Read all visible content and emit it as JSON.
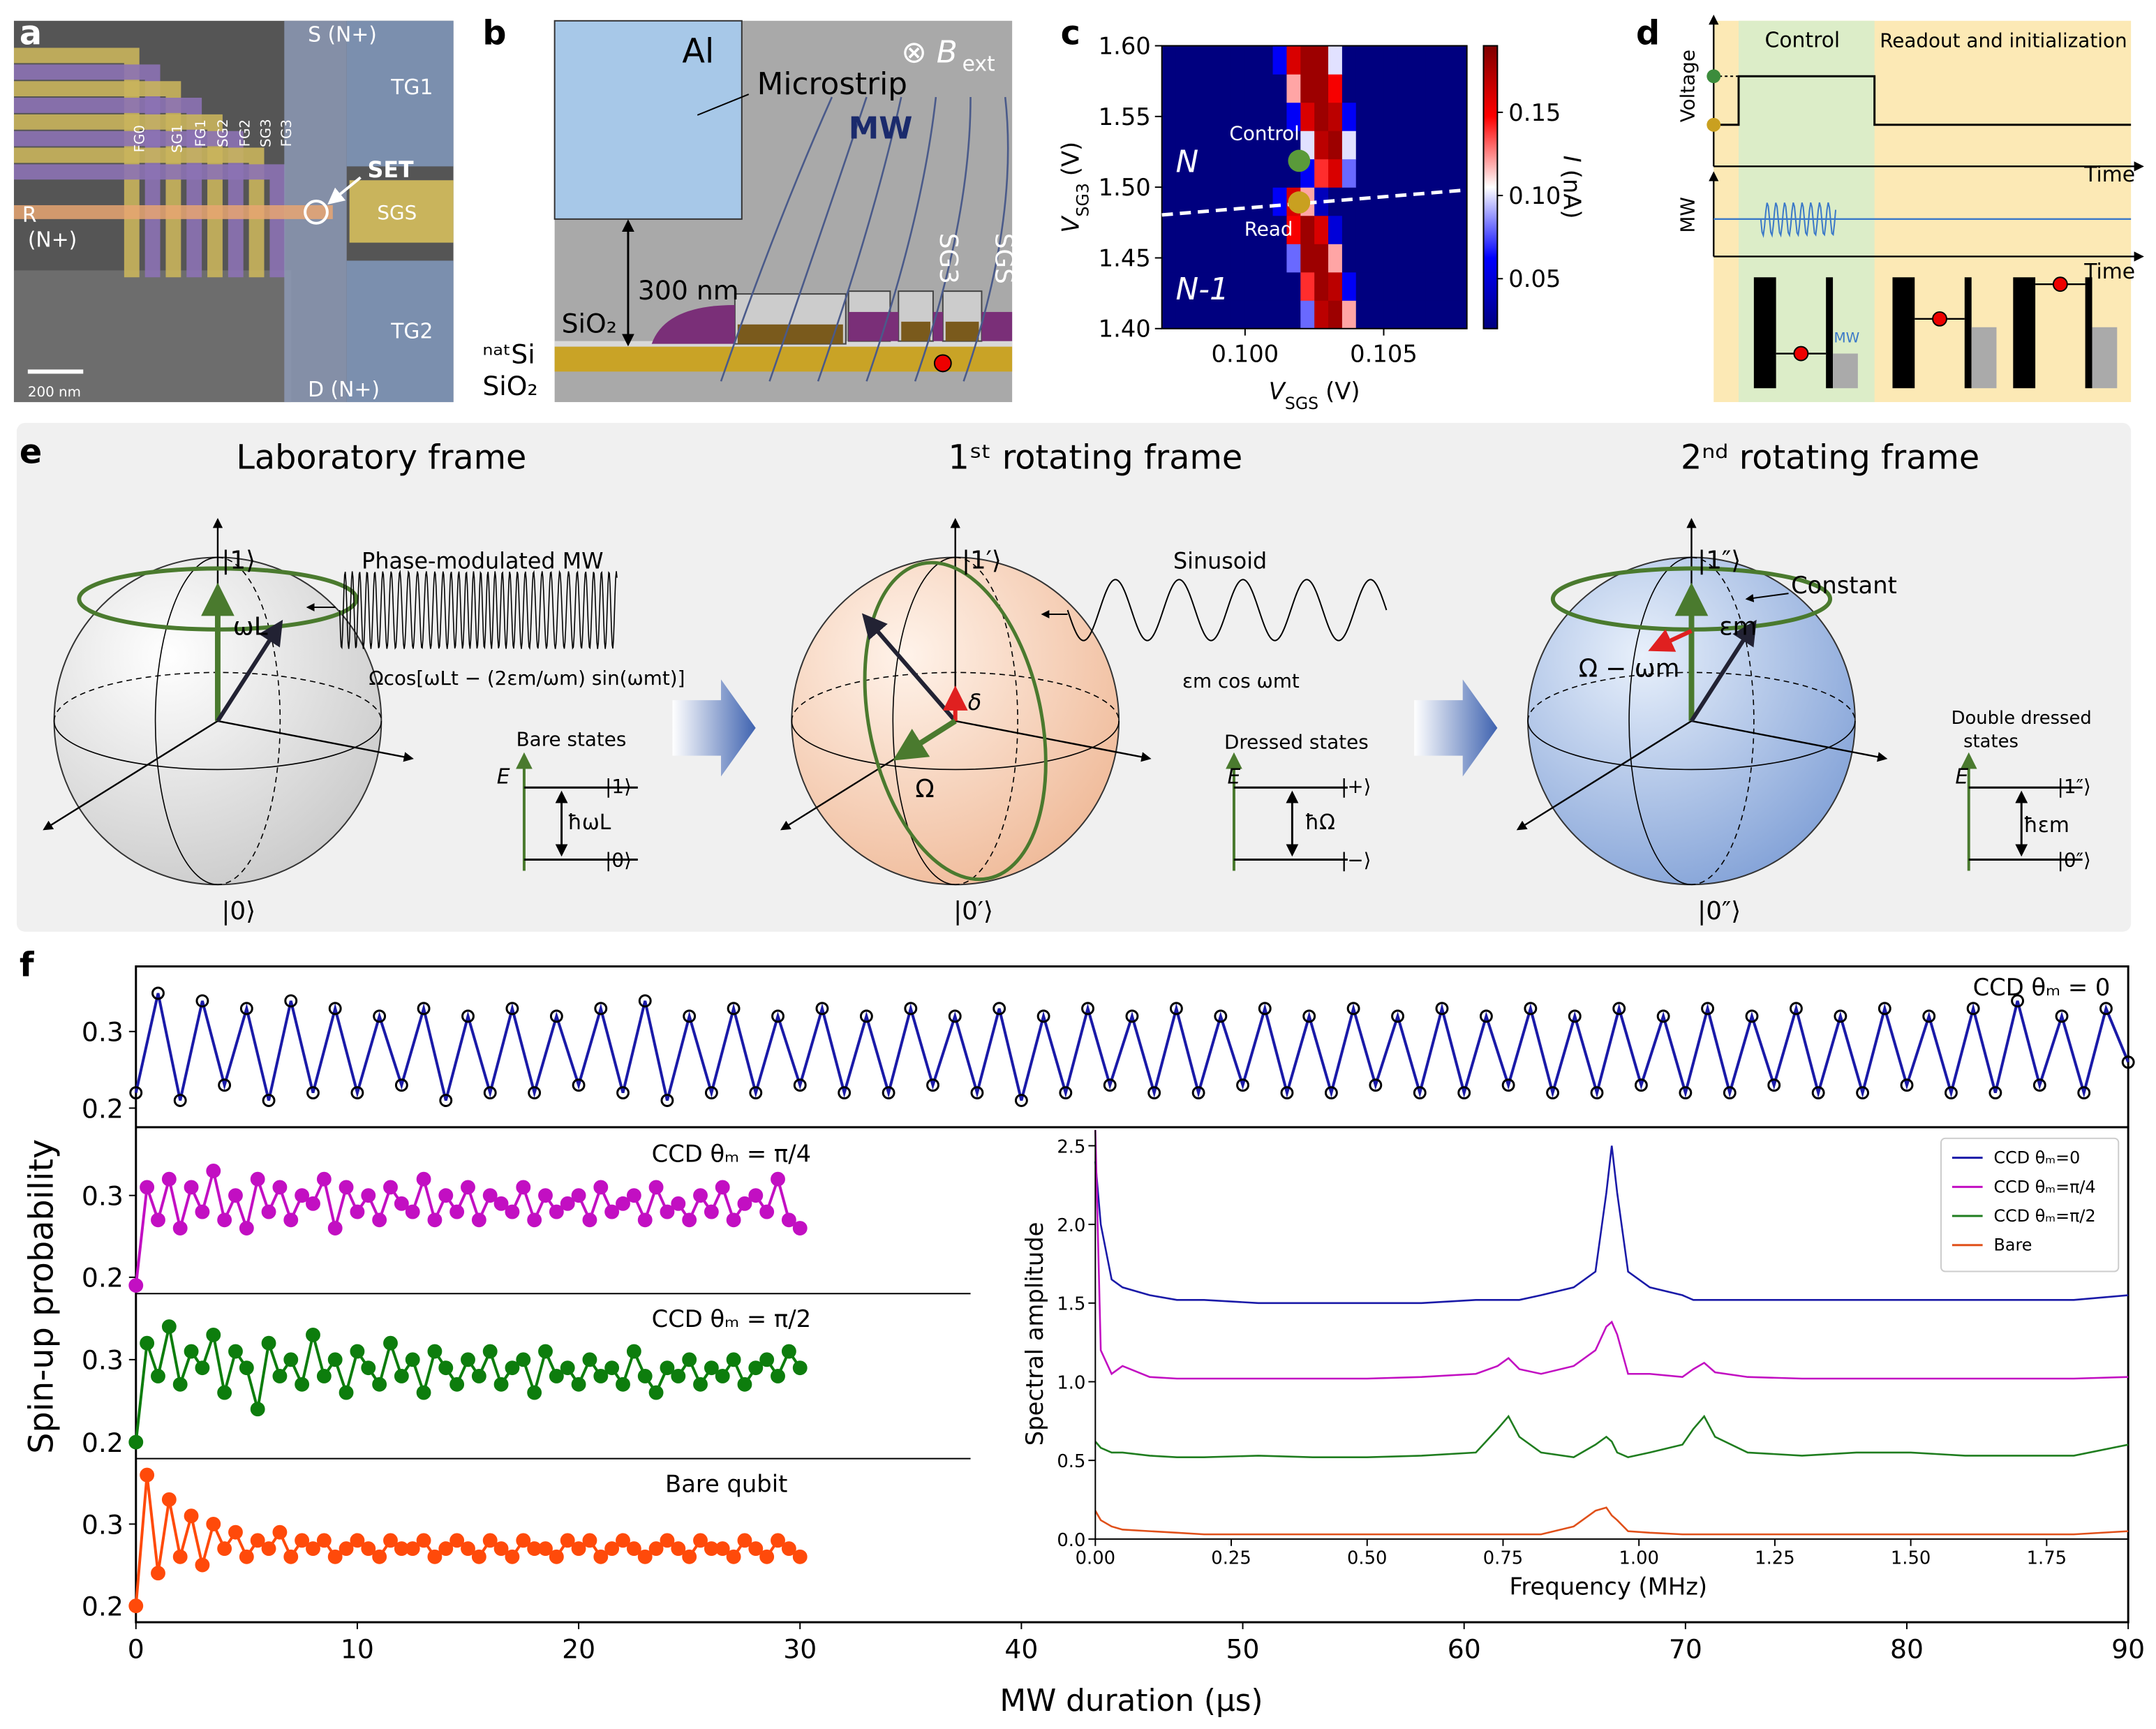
{
  "panel_labels": [
    "a",
    "b",
    "c",
    "d",
    "e",
    "f"
  ],
  "a": {
    "texts": [
      "S (N+)",
      "TG1",
      "FG0",
      "SG1",
      "FG1",
      "SG2",
      "FG2",
      "SG3",
      "FG3",
      "SET",
      "R",
      "(N+)",
      "SGS",
      "TG2",
      "D (N+)",
      "200 nm"
    ]
  },
  "b": {
    "texts": [
      "Al",
      "Microstrip",
      "MW",
      "300 nm",
      "SiO₂",
      "SG3",
      "SGS",
      "ⁿᵃᵗSi",
      "SiO₂",
      "⊗ B",
      "ext"
    ]
  },
  "d": {
    "texts": [
      "Voltage",
      "Control",
      "Readout and initialization",
      "Time",
      "MW",
      "Time",
      "MW"
    ]
  },
  "e": {
    "texts": [
      "Laboratory frame",
      "1ˢᵗ rotating frame",
      "2ⁿᵈ  rotating frame",
      "|1⟩",
      "|0⟩",
      "ωL",
      "Phase-modulated MW",
      "Ωcos[ωLt − (2εm/ωm) sin(ωmt)]",
      "Bare states",
      "E",
      "|1⟩",
      "ħωL",
      "|0⟩",
      "|1′⟩",
      "|0′⟩",
      "Sinusoid",
      "εm cos ωmt",
      "δ",
      "Ω",
      "Dressed states",
      "E",
      "|+⟩",
      "ħΩ",
      "|−⟩",
      "|1″⟩",
      "|0″⟩",
      "Constant",
      "εm",
      "Ω − ωm",
      "Double dressed",
      "states",
      "E",
      "|1″⟩",
      "ħεm",
      "|0″⟩"
    ]
  },
  "chart_data": [
    {
      "type": "heatmap",
      "xlabel": [
        "V",
        "SGS",
        "(V)"
      ],
      "ylabel": [
        "V",
        "SG3",
        "(V)"
      ],
      "colorbar_label": [
        "I",
        "(nA)"
      ],
      "colormap": "seismic",
      "x": [
        0.09725,
        0.09775,
        0.09825,
        0.09875,
        0.09925,
        0.09975,
        0.10025,
        0.10075,
        0.10125,
        0.10175,
        0.10225,
        0.10275,
        0.10325,
        0.10375,
        0.10425,
        0.10475,
        0.10525,
        0.10575,
        0.10625,
        0.10675,
        0.10725,
        0.10775
      ],
      "y": [
        1.41,
        1.43,
        1.45,
        1.47,
        1.49,
        1.51,
        1.53,
        1.55,
        1.57,
        1.59
      ],
      "values": [
        [
          0.02,
          0.02,
          0.02,
          0.02,
          0.02,
          0.02,
          0.02,
          0.02,
          0.02,
          0.02,
          0.08,
          0.17,
          0.18,
          0.12,
          0.02,
          0.02,
          0.02,
          0.02,
          0.02,
          0.02,
          0.02,
          0.02
        ],
        [
          0.02,
          0.02,
          0.02,
          0.02,
          0.02,
          0.02,
          0.02,
          0.02,
          0.02,
          0.02,
          0.14,
          0.18,
          0.17,
          0.06,
          0.02,
          0.02,
          0.02,
          0.02,
          0.02,
          0.02,
          0.02,
          0.02
        ],
        [
          0.02,
          0.02,
          0.02,
          0.02,
          0.02,
          0.02,
          0.02,
          0.02,
          0.02,
          0.08,
          0.18,
          0.18,
          0.12,
          0.02,
          0.02,
          0.02,
          0.02,
          0.02,
          0.02,
          0.02,
          0.02,
          0.02
        ],
        [
          0.02,
          0.02,
          0.02,
          0.02,
          0.02,
          0.02,
          0.02,
          0.02,
          0.02,
          0.15,
          0.18,
          0.16,
          0.05,
          0.02,
          0.02,
          0.02,
          0.02,
          0.02,
          0.02,
          0.02,
          0.02,
          0.02
        ],
        [
          0.02,
          0.02,
          0.02,
          0.02,
          0.02,
          0.02,
          0.02,
          0.02,
          0.06,
          0.16,
          0.12,
          0.04,
          0.02,
          0.02,
          0.02,
          0.02,
          0.02,
          0.02,
          0.02,
          0.02,
          0.02,
          0.02
        ],
        [
          0.02,
          0.02,
          0.02,
          0.02,
          0.02,
          0.02,
          0.02,
          0.02,
          0.02,
          0.02,
          0.06,
          0.14,
          0.16,
          0.08,
          0.02,
          0.02,
          0.02,
          0.02,
          0.02,
          0.02,
          0.02,
          0.02
        ],
        [
          0.02,
          0.02,
          0.02,
          0.02,
          0.02,
          0.02,
          0.02,
          0.02,
          0.02,
          0.02,
          0.1,
          0.17,
          0.18,
          0.1,
          0.02,
          0.02,
          0.02,
          0.02,
          0.02,
          0.02,
          0.02,
          0.02
        ],
        [
          0.02,
          0.02,
          0.02,
          0.02,
          0.02,
          0.02,
          0.02,
          0.02,
          0.02,
          0.06,
          0.16,
          0.18,
          0.17,
          0.06,
          0.02,
          0.02,
          0.02,
          0.02,
          0.02,
          0.02,
          0.02,
          0.02
        ],
        [
          0.02,
          0.02,
          0.02,
          0.02,
          0.02,
          0.02,
          0.02,
          0.02,
          0.02,
          0.12,
          0.18,
          0.18,
          0.15,
          0.02,
          0.02,
          0.02,
          0.02,
          0.02,
          0.02,
          0.02,
          0.02,
          0.02
        ],
        [
          0.02,
          0.02,
          0.02,
          0.02,
          0.02,
          0.02,
          0.02,
          0.02,
          0.06,
          0.16,
          0.18,
          0.18,
          0.1,
          0.02,
          0.02,
          0.02,
          0.02,
          0.02,
          0.02,
          0.02,
          0.02,
          0.02
        ]
      ],
      "xlim": [
        0.097,
        0.108
      ],
      "xticks": [
        {
          "value": 0.1,
          "label": "0.100"
        },
        {
          "value": 0.105,
          "label": "0.105"
        }
      ],
      "ylim": [
        1.4,
        1.6
      ],
      "yticks": [
        {
          "value": 1.4,
          "label": "1.40"
        },
        1.45,
        {
          "value": 1.5,
          "label": "1.50"
        },
        1.55,
        {
          "value": 1.6,
          "label": "1.60"
        }
      ],
      "clim": [
        0.02,
        0.19
      ],
      "cticks": [
        0.05,
        {
          "value": 0.1,
          "label": "0.10"
        },
        0.15
      ],
      "annotations": [
        "Control",
        "Read",
        "N",
        "N-1"
      ]
    },
    {
      "type": "line",
      "title": "CCD θₘ = 0",
      "color": "#1a1aa8",
      "marker": true,
      "marker_color": "#000000",
      "marker_fill": false,
      "x": [
        0,
        1,
        2,
        3,
        4,
        5,
        6,
        7,
        8,
        9,
        10,
        11,
        12,
        13,
        14,
        15,
        16,
        17,
        18,
        19,
        20,
        21,
        22,
        23,
        24,
        25,
        26,
        27,
        28,
        29,
        30,
        31,
        32,
        33,
        34,
        35,
        36,
        37,
        38,
        39,
        40,
        41,
        42,
        43,
        44,
        45,
        46,
        47,
        48,
        49,
        50,
        51,
        52,
        53,
        54,
        55,
        56,
        57,
        58,
        59,
        60,
        61,
        62,
        63,
        64,
        65,
        66,
        67,
        68,
        69,
        70,
        71,
        72,
        73,
        74,
        75,
        76,
        77,
        78,
        79,
        80,
        81,
        82,
        83,
        84,
        85,
        86,
        87,
        88,
        89,
        90
      ],
      "values": [
        0.22,
        0.35,
        0.21,
        0.34,
        0.23,
        0.33,
        0.21,
        0.34,
        0.22,
        0.33,
        0.22,
        0.32,
        0.23,
        0.33,
        0.21,
        0.32,
        0.22,
        0.33,
        0.22,
        0.32,
        0.23,
        0.33,
        0.22,
        0.34,
        0.21,
        0.32,
        0.22,
        0.33,
        0.22,
        0.32,
        0.23,
        0.33,
        0.22,
        0.32,
        0.22,
        0.33,
        0.23,
        0.32,
        0.22,
        0.33,
        0.21,
        0.32,
        0.22,
        0.33,
        0.23,
        0.32,
        0.22,
        0.33,
        0.22,
        0.32,
        0.23,
        0.33,
        0.22,
        0.32,
        0.22,
        0.33,
        0.23,
        0.32,
        0.22,
        0.33,
        0.22,
        0.32,
        0.23,
        0.33,
        0.22,
        0.32,
        0.22,
        0.33,
        0.23,
        0.32,
        0.22,
        0.33,
        0.22,
        0.32,
        0.23,
        0.33,
        0.22,
        0.32,
        0.22,
        0.33,
        0.23,
        0.32,
        0.22,
        0.33,
        0.22,
        0.34,
        0.23,
        0.32,
        0.22,
        0.33,
        0.26
      ],
      "xlim": [
        0,
        90
      ],
      "ylim": [
        0.175,
        0.385
      ],
      "yticks": [
        0.2,
        0.3
      ]
    },
    {
      "type": "line",
      "title": "CCD θₘ = π/4",
      "color": "#c20fc2",
      "marker": true,
      "marker_color": "#c20fc2",
      "marker_fill": true,
      "x": [
        0,
        0.5,
        1,
        1.5,
        2,
        2.5,
        3,
        3.5,
        4,
        4.5,
        5,
        5.5,
        6,
        6.5,
        7,
        7.5,
        8,
        8.5,
        9,
        9.5,
        10,
        10.5,
        11,
        11.5,
        12,
        12.5,
        13,
        13.5,
        14,
        14.5,
        15,
        15.5,
        16,
        16.5,
        17,
        17.5,
        18,
        18.5,
        19,
        19.5,
        20,
        20.5,
        21,
        21.5,
        22,
        22.5,
        23,
        23.5,
        24,
        24.5,
        25,
        25.5,
        26,
        26.5,
        27,
        27.5,
        28,
        28.5,
        29,
        29.5,
        30
      ],
      "values": [
        0.19,
        0.31,
        0.27,
        0.32,
        0.26,
        0.31,
        0.28,
        0.33,
        0.27,
        0.3,
        0.26,
        0.32,
        0.28,
        0.31,
        0.27,
        0.3,
        0.29,
        0.32,
        0.26,
        0.31,
        0.28,
        0.3,
        0.27,
        0.31,
        0.29,
        0.28,
        0.32,
        0.27,
        0.3,
        0.28,
        0.31,
        0.27,
        0.3,
        0.29,
        0.28,
        0.31,
        0.27,
        0.3,
        0.28,
        0.29,
        0.3,
        0.27,
        0.31,
        0.28,
        0.29,
        0.3,
        0.27,
        0.31,
        0.28,
        0.29,
        0.27,
        0.3,
        0.28,
        0.31,
        0.27,
        0.29,
        0.3,
        0.28,
        0.32,
        0.27,
        0.26
      ],
      "xlim": [
        0,
        90
      ],
      "ylim": [
        0.18,
        0.38
      ],
      "yticks": [
        0.2,
        0.3
      ]
    },
    {
      "type": "line",
      "title": "CCD θₘ = π/2",
      "color": "#0d7d0d",
      "marker": true,
      "marker_color": "#0d7d0d",
      "marker_fill": true,
      "x": [
        0,
        0.5,
        1,
        1.5,
        2,
        2.5,
        3,
        3.5,
        4,
        4.5,
        5,
        5.5,
        6,
        6.5,
        7,
        7.5,
        8,
        8.5,
        9,
        9.5,
        10,
        10.5,
        11,
        11.5,
        12,
        12.5,
        13,
        13.5,
        14,
        14.5,
        15,
        15.5,
        16,
        16.5,
        17,
        17.5,
        18,
        18.5,
        19,
        19.5,
        20,
        20.5,
        21,
        21.5,
        22,
        22.5,
        23,
        23.5,
        24,
        24.5,
        25,
        25.5,
        26,
        26.5,
        27,
        27.5,
        28,
        28.5,
        29,
        29.5,
        30
      ],
      "values": [
        0.2,
        0.32,
        0.28,
        0.34,
        0.27,
        0.31,
        0.29,
        0.33,
        0.26,
        0.31,
        0.29,
        0.24,
        0.32,
        0.28,
        0.3,
        0.27,
        0.33,
        0.28,
        0.3,
        0.26,
        0.31,
        0.29,
        0.27,
        0.32,
        0.28,
        0.3,
        0.26,
        0.31,
        0.29,
        0.27,
        0.3,
        0.28,
        0.31,
        0.27,
        0.29,
        0.3,
        0.26,
        0.31,
        0.28,
        0.29,
        0.27,
        0.3,
        0.28,
        0.29,
        0.27,
        0.31,
        0.28,
        0.26,
        0.29,
        0.28,
        0.3,
        0.27,
        0.29,
        0.28,
        0.3,
        0.27,
        0.29,
        0.3,
        0.28,
        0.31,
        0.29
      ],
      "xlim": [
        0,
        90
      ],
      "ylim": [
        0.18,
        0.38
      ],
      "yticks": [
        0.2,
        0.3
      ]
    },
    {
      "type": "line",
      "title": "Bare qubit",
      "color": "#ff4a0a",
      "marker": true,
      "marker_color": "#ff4a0a",
      "marker_fill": true,
      "xlabel": "MW duration (μs)",
      "ylabel": "Spin-up probability",
      "x": [
        0,
        0.5,
        1,
        1.5,
        2,
        2.5,
        3,
        3.5,
        4,
        4.5,
        5,
        5.5,
        6,
        6.5,
        7,
        7.5,
        8,
        8.5,
        9,
        9.5,
        10,
        10.5,
        11,
        11.5,
        12,
        12.5,
        13,
        13.5,
        14,
        14.5,
        15,
        15.5,
        16,
        16.5,
        17,
        17.5,
        18,
        18.5,
        19,
        19.5,
        20,
        20.5,
        21,
        21.5,
        22,
        22.5,
        23,
        23.5,
        24,
        24.5,
        25,
        25.5,
        26,
        26.5,
        27,
        27.5,
        28,
        28.5,
        29,
        29.5,
        30
      ],
      "values": [
        0.2,
        0.36,
        0.24,
        0.33,
        0.26,
        0.31,
        0.25,
        0.3,
        0.27,
        0.29,
        0.26,
        0.28,
        0.27,
        0.29,
        0.26,
        0.28,
        0.27,
        0.28,
        0.26,
        0.27,
        0.28,
        0.27,
        0.26,
        0.28,
        0.27,
        0.27,
        0.28,
        0.26,
        0.27,
        0.28,
        0.27,
        0.26,
        0.28,
        0.27,
        0.26,
        0.28,
        0.27,
        0.27,
        0.26,
        0.28,
        0.27,
        0.28,
        0.26,
        0.27,
        0.28,
        0.27,
        0.26,
        0.27,
        0.28,
        0.27,
        0.26,
        0.28,
        0.27,
        0.27,
        0.26,
        0.28,
        0.27,
        0.26,
        0.28,
        0.27,
        0.26
      ],
      "xlim": [
        0,
        90
      ],
      "xticks": [
        0,
        10,
        20,
        30,
        40,
        50,
        60,
        70,
        80,
        90
      ],
      "ylim": [
        0.18,
        0.38
      ],
      "yticks": [
        0.2,
        0.3
      ]
    },
    {
      "type": "line",
      "xlabel": "Frequency (MHz)",
      "ylabel": "Spectral amplitude",
      "legend": "upper right",
      "x": [
        0,
        0.01,
        0.03,
        0.05,
        0.1,
        0.15,
        0.2,
        0.3,
        0.4,
        0.5,
        0.6,
        0.7,
        0.74,
        0.76,
        0.78,
        0.82,
        0.88,
        0.92,
        0.94,
        0.95,
        0.96,
        0.98,
        1.02,
        1.08,
        1.1,
        1.12,
        1.14,
        1.2,
        1.3,
        1.4,
        1.5,
        1.6,
        1.7,
        1.8,
        1.9
      ],
      "series": [
        {
          "name": "CCD θₘ=0",
          "color": "#1a1aa8",
          "values": [
            2.4,
            2.0,
            1.65,
            1.6,
            1.55,
            1.52,
            1.52,
            1.5,
            1.5,
            1.5,
            1.5,
            1.52,
            1.52,
            1.52,
            1.52,
            1.55,
            1.6,
            1.7,
            2.2,
            2.5,
            2.2,
            1.7,
            1.6,
            1.55,
            1.52,
            1.52,
            1.52,
            1.52,
            1.52,
            1.52,
            1.52,
            1.52,
            1.52,
            1.52,
            1.55
          ]
        },
        {
          "name": "CCD θₘ=π/4",
          "color": "#c20fc2",
          "values": [
            2.6,
            1.2,
            1.05,
            1.1,
            1.03,
            1.02,
            1.02,
            1.02,
            1.02,
            1.02,
            1.03,
            1.05,
            1.1,
            1.15,
            1.08,
            1.05,
            1.1,
            1.2,
            1.35,
            1.38,
            1.3,
            1.05,
            1.05,
            1.03,
            1.08,
            1.12,
            1.06,
            1.03,
            1.02,
            1.02,
            1.02,
            1.02,
            1.02,
            1.02,
            1.03
          ]
        },
        {
          "name": "CCD θₘ=π/2",
          "color": "#1f7d1f",
          "values": [
            0.62,
            0.58,
            0.55,
            0.55,
            0.53,
            0.52,
            0.52,
            0.53,
            0.52,
            0.52,
            0.53,
            0.55,
            0.7,
            0.78,
            0.65,
            0.55,
            0.52,
            0.6,
            0.65,
            0.62,
            0.55,
            0.52,
            0.55,
            0.6,
            0.7,
            0.78,
            0.65,
            0.55,
            0.53,
            0.55,
            0.55,
            0.53,
            0.53,
            0.53,
            0.6
          ]
        },
        {
          "name": "Bare",
          "color": "#e0501a",
          "values": [
            0.18,
            0.12,
            0.08,
            0.06,
            0.05,
            0.04,
            0.03,
            0.03,
            0.03,
            0.03,
            0.03,
            0.03,
            0.03,
            0.03,
            0.03,
            0.03,
            0.08,
            0.18,
            0.2,
            0.15,
            0.12,
            0.05,
            0.04,
            0.03,
            0.03,
            0.03,
            0.03,
            0.03,
            0.03,
            0.03,
            0.03,
            0.03,
            0.03,
            0.03,
            0.05
          ]
        }
      ],
      "xlim": [
        0,
        1.9
      ],
      "xticks": [
        {
          "value": 0,
          "label": "0.00"
        },
        0.25,
        {
          "value": 0.5,
          "label": "0.50"
        },
        0.75,
        {
          "value": 1,
          "label": "1.00"
        },
        1.25,
        {
          "value": 1.5,
          "label": "1.50"
        },
        1.75
      ],
      "ylim": [
        0,
        2.6
      ],
      "yticks": [
        {
          "value": 0,
          "label": "0.0"
        },
        0.5,
        {
          "value": 1,
          "label": "1.0"
        },
        1.5,
        {
          "value": 2,
          "label": "2.0"
        },
        2.5
      ]
    }
  ]
}
